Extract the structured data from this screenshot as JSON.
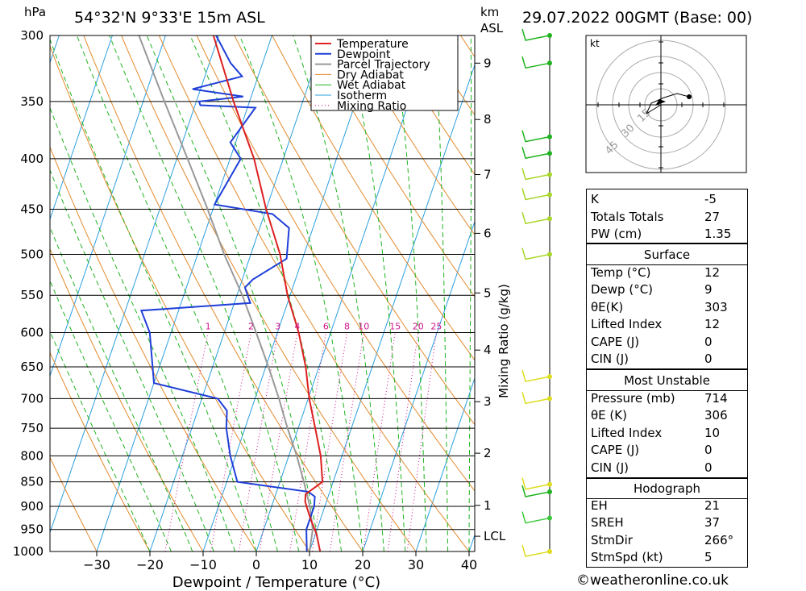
{
  "header": {
    "location": "54°32'N  9°33'E  15m  ASL",
    "date": "29.07.2022  00GMT  (Base: 00)",
    "hpa_label": "hPa",
    "km_label": "km",
    "asl_label": "ASL"
  },
  "footer": {
    "copyright": "©weatheronline.co.uk"
  },
  "colors": {
    "temperature": "#dd2020",
    "dewpoint": "#1f3fd8",
    "parcel": "#999999",
    "dry_adiabat": "#e38a2c",
    "wet_adiabat": "#1fb31f",
    "isotherm": "#2b9fe0",
    "mixing_ratio": "#d1128b"
  },
  "chart_data": {
    "type": "line",
    "title": "",
    "xlabel": "Dewpoint / Temperature (°C)",
    "ylabel": "hPa",
    "right_axis_label": "Mixing Ratio (g/kg)",
    "pressure_levels": [
      300,
      350,
      400,
      450,
      500,
      550,
      600,
      650,
      700,
      750,
      800,
      850,
      900,
      950,
      1000
    ],
    "x_ticks": [
      -30,
      -20,
      -10,
      0,
      10,
      20,
      30,
      40
    ],
    "x_tick_labels": [
      "−30",
      "−20",
      "−10",
      "0",
      "10",
      "20",
      "30",
      "40"
    ],
    "xlim": [
      -40,
      40
    ],
    "skew_deg_per_decade": 63,
    "height_km_ticks": [
      {
        "label": "9",
        "p": 320
      },
      {
        "label": "8",
        "p": 365
      },
      {
        "label": "7",
        "p": 415
      },
      {
        "label": "6",
        "p": 476
      },
      {
        "label": "5",
        "p": 547
      },
      {
        "label": "4",
        "p": 625
      },
      {
        "label": "3",
        "p": 705
      },
      {
        "label": "2",
        "p": 795
      },
      {
        "label": "1",
        "p": 898
      },
      {
        "label": "LCL",
        "p": 965
      }
    ],
    "mixing_ratio_labels": [
      "1",
      "2",
      "3",
      "4",
      "6",
      "8",
      "10",
      "15",
      "20",
      "25"
    ],
    "legend": [
      "Temperature",
      "Dewpoint",
      "Parcel Trajectory",
      "Dry Adiabat",
      "Wet Adiabat",
      "Isotherm",
      "Mixing Ratio"
    ],
    "series": [
      {
        "name": "Temperature",
        "points": [
          [
            1000,
            12
          ],
          [
            960,
            10.2
          ],
          [
            925,
            8
          ],
          [
            890,
            6
          ],
          [
            875,
            5.6
          ],
          [
            850,
            8
          ],
          [
            800,
            6
          ],
          [
            750,
            3.2
          ],
          [
            700,
            0.2
          ],
          [
            650,
            -2.5
          ],
          [
            600,
            -6
          ],
          [
            550,
            -10.5
          ],
          [
            500,
            -14.5
          ],
          [
            450,
            -20
          ],
          [
            400,
            -25.5
          ],
          [
            350,
            -33
          ],
          [
            300,
            -41
          ]
        ]
      },
      {
        "name": "Dewpoint",
        "points": [
          [
            1000,
            9.5
          ],
          [
            950,
            8
          ],
          [
            900,
            8
          ],
          [
            880,
            7.5
          ],
          [
            870,
            6
          ],
          [
            850,
            -8
          ],
          [
            800,
            -11
          ],
          [
            750,
            -13.5
          ],
          [
            720,
            -14.5
          ],
          [
            700,
            -17
          ],
          [
            675,
            -30
          ],
          [
            600,
            -34
          ],
          [
            570,
            -37
          ],
          [
            560,
            -17
          ],
          [
            540,
            -19
          ],
          [
            530,
            -18
          ],
          [
            505,
            -13
          ],
          [
            470,
            -14.5
          ],
          [
            455,
            -18.5
          ],
          [
            445,
            -30
          ],
          [
            400,
            -28
          ],
          [
            385,
            -31
          ],
          [
            355,
            -28.5
          ],
          [
            353,
            -39
          ],
          [
            350,
            -39.5
          ],
          [
            346,
            -31.5
          ],
          [
            340,
            -41.5
          ],
          [
            330,
            -33
          ],
          [
            320,
            -36
          ],
          [
            300,
            -40.5
          ]
        ]
      },
      {
        "name": "Parcel Trajectory",
        "points": [
          [
            1000,
            10
          ],
          [
            950,
            9.2
          ],
          [
            900,
            7.2
          ],
          [
            850,
            4.5
          ],
          [
            800,
            1.5
          ],
          [
            750,
            -2
          ],
          [
            700,
            -5.5
          ],
          [
            650,
            -9.5
          ],
          [
            600,
            -14
          ],
          [
            550,
            -19
          ],
          [
            500,
            -25
          ],
          [
            450,
            -31
          ],
          [
            400,
            -38
          ],
          [
            350,
            -46
          ],
          [
            300,
            -55
          ]
        ]
      }
    ],
    "indices": [
      {
        "label": "K",
        "value": "-5"
      },
      {
        "label": "Totals Totals",
        "value": "27"
      },
      {
        "label": "PW (cm)",
        "value": "1.35"
      }
    ],
    "surface": {
      "title": "Surface",
      "rows": [
        {
          "label": "Temp (°C)",
          "value": "12"
        },
        {
          "label": "Dewp (°C)",
          "value": "9"
        },
        {
          "label": "θE(K)",
          "value": "303"
        },
        {
          "label": "Lifted Index",
          "value": "12"
        },
        {
          "label": "CAPE (J)",
          "value": "0"
        },
        {
          "label": "CIN (J)",
          "value": "0"
        }
      ]
    },
    "most_unstable": {
      "title": "Most Unstable",
      "rows": [
        {
          "label": "Pressure (mb)",
          "value": "714"
        },
        {
          "label": "θE (K)",
          "value": "306"
        },
        {
          "label": "Lifted Index",
          "value": "10"
        },
        {
          "label": "CAPE (J)",
          "value": "0"
        },
        {
          "label": "CIN (J)",
          "value": "0"
        }
      ]
    },
    "hodograph_table": {
      "title": "Hodograph",
      "rows": [
        {
          "label": "EH",
          "value": "21"
        },
        {
          "label": "SREH",
          "value": "37"
        },
        {
          "label": "StmDir",
          "value": "266°"
        },
        {
          "label": "StmSpd (kt)",
          "value": "5"
        }
      ]
    },
    "hodograph": {
      "unit_label": "kt",
      "ring_labels": [
        "15",
        "30",
        "45"
      ]
    },
    "wind_barbs": [
      {
        "p": 300,
        "color": "#1fb31f"
      },
      {
        "p": 320,
        "color": "#1fb31f"
      },
      {
        "p": 380,
        "color": "#1fb31f"
      },
      {
        "p": 395,
        "color": "#1fb31f"
      },
      {
        "p": 415,
        "color": "#a8d629"
      },
      {
        "p": 435,
        "color": "#a8d629"
      },
      {
        "p": 460,
        "color": "#a8d629"
      },
      {
        "p": 500,
        "color": "#a8d629"
      },
      {
        "p": 665,
        "color": "#dddd20"
      },
      {
        "p": 700,
        "color": "#dddd20"
      },
      {
        "p": 855,
        "color": "#dddd20"
      },
      {
        "p": 870,
        "color": "#1fb31f"
      },
      {
        "p": 925,
        "color": "#3ac93a"
      },
      {
        "p": 1000,
        "color": "#dddd20"
      }
    ]
  }
}
